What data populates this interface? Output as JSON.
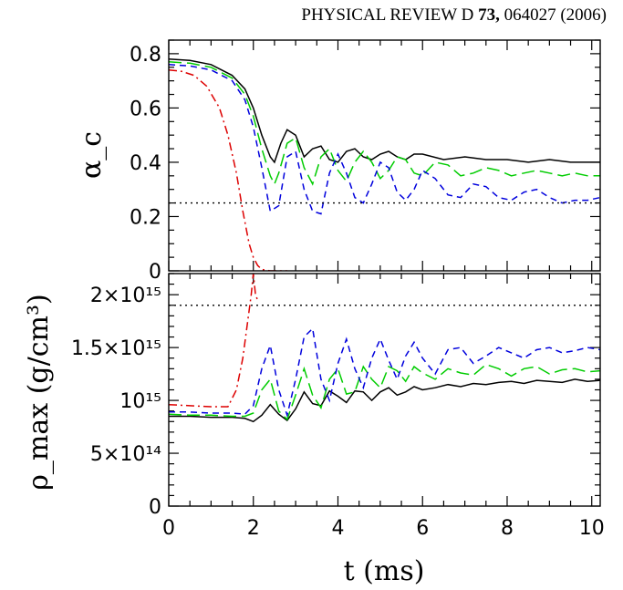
{
  "header": {
    "journal": "PHYSICAL REVIEW D ",
    "volume": "73,",
    "article": " 064027 (2006)"
  },
  "chart_data": [
    {
      "type": "line",
      "panel": "top",
      "ylabel": "α_c",
      "xlabel": "",
      "xlim": [
        0,
        10.2
      ],
      "ylim": [
        0,
        0.85
      ],
      "x_ticks": [
        "0",
        "2",
        "4",
        "6",
        "8",
        "10"
      ],
      "y_ticks": [
        "0",
        "0.2",
        "0.4",
        "0.6",
        "0.8"
      ],
      "series": [
        {
          "style": "solid",
          "color": "#000000",
          "x": [
            0,
            0.5,
            1.0,
            1.5,
            1.8,
            2.0,
            2.2,
            2.4,
            2.5,
            2.65,
            2.8,
            3.0,
            3.2,
            3.4,
            3.6,
            3.8,
            4.0,
            4.2,
            4.4,
            4.6,
            4.8,
            5.0,
            5.2,
            5.4,
            5.6,
            5.8,
            6.0,
            6.5,
            7.0,
            7.5,
            8.0,
            8.5,
            9.0,
            9.5,
            10.0,
            10.2
          ],
          "y": [
            0.78,
            0.775,
            0.76,
            0.72,
            0.67,
            0.6,
            0.5,
            0.42,
            0.4,
            0.47,
            0.52,
            0.5,
            0.42,
            0.45,
            0.46,
            0.41,
            0.4,
            0.44,
            0.45,
            0.42,
            0.41,
            0.43,
            0.44,
            0.42,
            0.41,
            0.43,
            0.43,
            0.41,
            0.42,
            0.41,
            0.41,
            0.4,
            0.41,
            0.4,
            0.4,
            0.4
          ]
        },
        {
          "style": "long-dash",
          "color": "#00cc00",
          "x": [
            0,
            0.5,
            1.0,
            1.5,
            1.8,
            2.0,
            2.2,
            2.4,
            2.5,
            2.6,
            2.8,
            3.0,
            3.2,
            3.4,
            3.6,
            3.8,
            4.0,
            4.2,
            4.4,
            4.6,
            4.8,
            5.0,
            5.2,
            5.4,
            5.6,
            5.8,
            6.0,
            6.3,
            6.6,
            6.9,
            7.2,
            7.5,
            7.8,
            8.1,
            8.4,
            8.7,
            9.0,
            9.3,
            9.6,
            9.9,
            10.2
          ],
          "y": [
            0.77,
            0.765,
            0.75,
            0.71,
            0.65,
            0.57,
            0.45,
            0.35,
            0.32,
            0.36,
            0.47,
            0.49,
            0.38,
            0.32,
            0.42,
            0.45,
            0.37,
            0.33,
            0.4,
            0.44,
            0.4,
            0.34,
            0.37,
            0.42,
            0.41,
            0.36,
            0.35,
            0.4,
            0.39,
            0.35,
            0.36,
            0.38,
            0.37,
            0.35,
            0.36,
            0.37,
            0.36,
            0.35,
            0.36,
            0.35,
            0.35
          ]
        },
        {
          "style": "short-dash",
          "color": "#0000dd",
          "x": [
            0,
            0.5,
            1.0,
            1.5,
            1.8,
            2.0,
            2.2,
            2.4,
            2.6,
            2.8,
            3.0,
            3.2,
            3.4,
            3.6,
            3.8,
            4.0,
            4.2,
            4.4,
            4.6,
            4.8,
            5.0,
            5.2,
            5.4,
            5.6,
            5.8,
            6.0,
            6.3,
            6.6,
            6.9,
            7.2,
            7.5,
            7.8,
            8.1,
            8.4,
            8.7,
            9.0,
            9.3,
            9.6,
            9.9,
            10.2
          ],
          "y": [
            0.76,
            0.755,
            0.74,
            0.7,
            0.63,
            0.53,
            0.38,
            0.22,
            0.24,
            0.42,
            0.44,
            0.3,
            0.22,
            0.21,
            0.36,
            0.43,
            0.36,
            0.27,
            0.25,
            0.32,
            0.4,
            0.38,
            0.29,
            0.26,
            0.3,
            0.37,
            0.34,
            0.28,
            0.27,
            0.32,
            0.31,
            0.27,
            0.26,
            0.29,
            0.3,
            0.27,
            0.25,
            0.26,
            0.26,
            0.27
          ]
        },
        {
          "style": "dash-dot",
          "color": "#dd0000",
          "x": [
            0,
            0.3,
            0.6,
            0.9,
            1.2,
            1.4,
            1.6,
            1.75,
            1.9,
            2.0,
            2.1,
            2.2,
            2.4,
            2.6,
            2.8
          ],
          "y": [
            0.74,
            0.735,
            0.72,
            0.68,
            0.6,
            0.5,
            0.36,
            0.22,
            0.1,
            0.05,
            0.02,
            0.005,
            0,
            0,
            0
          ]
        },
        {
          "style": "dotted",
          "color": "#000000",
          "x": [
            0,
            10.2
          ],
          "y": [
            0.25,
            0.25
          ]
        }
      ]
    },
    {
      "type": "line",
      "panel": "bottom",
      "xlabel": "t (ms)",
      "ylabel": "ρ_max (g/cm³)",
      "xlim": [
        0,
        10.2
      ],
      "ylim": [
        0,
        2200000000000000.0
      ],
      "x_ticks": [
        "0",
        "2",
        "4",
        "6",
        "8",
        "10"
      ],
      "y_ticks": [
        "0",
        "5×10¹⁴",
        "10¹⁵",
        "1.5×10¹⁵",
        "2×10¹⁵"
      ],
      "series": [
        {
          "style": "solid",
          "color": "#000000",
          "x": [
            0,
            0.5,
            1.0,
            1.5,
            1.8,
            2.0,
            2.2,
            2.4,
            2.6,
            2.8,
            3.0,
            3.2,
            3.4,
            3.6,
            3.8,
            4.0,
            4.2,
            4.4,
            4.6,
            4.8,
            5.0,
            5.2,
            5.4,
            5.6,
            5.8,
            6.0,
            6.3,
            6.6,
            6.9,
            7.2,
            7.5,
            7.8,
            8.1,
            8.4,
            8.7,
            9.0,
            9.3,
            9.6,
            9.9,
            10.2
          ],
          "y": [
            850000000000000.0,
            850000000000000.0,
            840000000000000.0,
            840000000000000.0,
            830000000000000.0,
            800000000000000.0,
            860000000000000.0,
            960000000000000.0,
            870000000000000.0,
            810000000000000.0,
            920000000000000.0,
            1080000000000000.0,
            970000000000000.0,
            950000000000000.0,
            1090000000000000.0,
            1040000000000000.0,
            980000000000000.0,
            1090000000000000.0,
            1080000000000000.0,
            1000000000000000.0,
            1080000000000000.0,
            1120000000000000.0,
            1050000000000000.0,
            1080000000000000.0,
            1130000000000000.0,
            1100000000000000.0,
            1120000000000000.0,
            1150000000000000.0,
            1130000000000000.0,
            1160000000000000.0,
            1150000000000000.0,
            1170000000000000.0,
            1180000000000000.0,
            1160000000000000.0,
            1190000000000000.0,
            1180000000000000.0,
            1170000000000000.0,
            1200000000000000.0,
            1180000000000000.0,
            1190000000000000.0
          ]
        },
        {
          "style": "long-dash",
          "color": "#00cc00",
          "x": [
            0,
            0.5,
            1.0,
            1.5,
            1.8,
            2.0,
            2.2,
            2.4,
            2.6,
            2.8,
            3.0,
            3.2,
            3.4,
            3.6,
            3.8,
            4.0,
            4.2,
            4.4,
            4.6,
            4.8,
            5.0,
            5.2,
            5.4,
            5.6,
            5.8,
            6.0,
            6.3,
            6.6,
            6.9,
            7.2,
            7.5,
            7.8,
            8.1,
            8.4,
            8.7,
            9.0,
            9.3,
            9.6,
            9.9,
            10.2
          ],
          "y": [
            870000000000000.0,
            860000000000000.0,
            860000000000000.0,
            850000000000000.0,
            850000000000000.0,
            880000000000000.0,
            1100000000000000.0,
            1200000000000000.0,
            900000000000000.0,
            820000000000000.0,
            1050000000000000.0,
            1300000000000000.0,
            1050000000000000.0,
            930000000000000.0,
            1200000000000000.0,
            1300000000000000.0,
            1060000000000000.0,
            1080000000000000.0,
            1320000000000000.0,
            1200000000000000.0,
            1120000000000000.0,
            1320000000000000.0,
            1280000000000000.0,
            1180000000000000.0,
            1320000000000000.0,
            1260000000000000.0,
            1200000000000000.0,
            1300000000000000.0,
            1260000000000000.0,
            1240000000000000.0,
            1340000000000000.0,
            1300000000000000.0,
            1230000000000000.0,
            1300000000000000.0,
            1320000000000000.0,
            1250000000000000.0,
            1290000000000000.0,
            1300000000000000.0,
            1270000000000000.0,
            1280000000000000.0
          ]
        },
        {
          "style": "short-dash",
          "color": "#0000dd",
          "x": [
            0,
            0.5,
            1.0,
            1.5,
            1.8,
            2.0,
            2.2,
            2.4,
            2.6,
            2.8,
            3.0,
            3.2,
            3.4,
            3.6,
            3.8,
            4.0,
            4.2,
            4.4,
            4.6,
            4.8,
            5.0,
            5.2,
            5.4,
            5.6,
            5.8,
            6.0,
            6.3,
            6.6,
            6.9,
            7.2,
            7.5,
            7.8,
            8.1,
            8.4,
            8.7,
            9.0,
            9.3,
            9.6,
            9.9,
            10.2
          ],
          "y": [
            890000000000000.0,
            890000000000000.0,
            880000000000000.0,
            880000000000000.0,
            870000000000000.0,
            950000000000000.0,
            1300000000000000.0,
            1520000000000000.0,
            1100000000000000.0,
            860000000000000.0,
            1200000000000000.0,
            1600000000000000.0,
            1680000000000000.0,
            1200000000000000.0,
            1000000000000000.0,
            1350000000000000.0,
            1580000000000000.0,
            1300000000000000.0,
            1120000000000000.0,
            1400000000000000.0,
            1580000000000000.0,
            1380000000000000.0,
            1200000000000000.0,
            1420000000000000.0,
            1550000000000000.0,
            1400000000000000.0,
            1250000000000000.0,
            1480000000000000.0,
            1500000000000000.0,
            1350000000000000.0,
            1420000000000000.0,
            1500000000000000.0,
            1450000000000000.0,
            1400000000000000.0,
            1480000000000000.0,
            1500000000000000.0,
            1450000000000000.0,
            1470000000000000.0,
            1500000000000000.0,
            1480000000000000.0
          ]
        },
        {
          "style": "dash-dot",
          "color": "#dd0000",
          "x": [
            0,
            0.5,
            1.0,
            1.4,
            1.6,
            1.75,
            1.85,
            1.95,
            2.0,
            2.05,
            2.1
          ],
          "y": [
            960000000000000.0,
            950000000000000.0,
            940000000000000.0,
            940000000000000.0,
            1100000000000000.0,
            1400000000000000.0,
            1700000000000000.0,
            2000000000000000.0,
            2200000000000000.0,
            2000000000000000.0,
            1950000000000000.0
          ]
        },
        {
          "style": "dotted",
          "color": "#000000",
          "x": [
            0,
            10.2
          ],
          "y": [
            1900000000000000.0,
            1900000000000000.0
          ]
        }
      ]
    }
  ]
}
